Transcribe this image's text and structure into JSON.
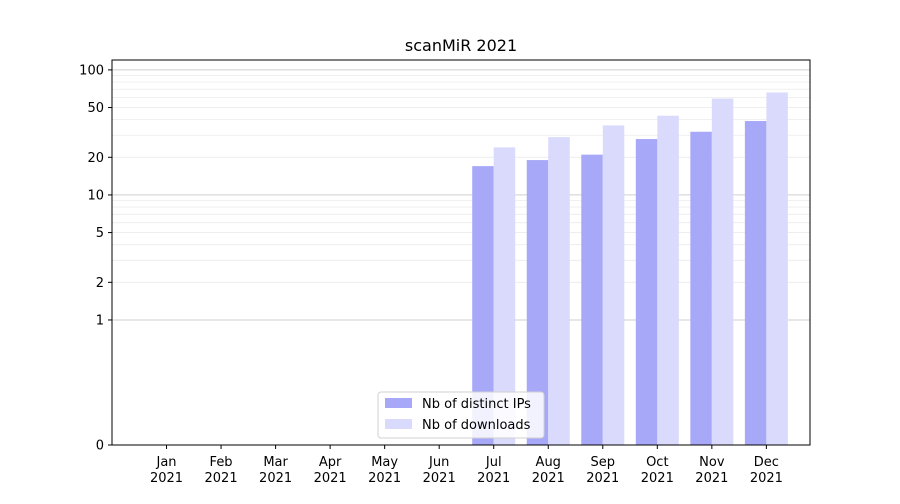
{
  "chart_data": {
    "type": "bar",
    "title": "scanMiR 2021",
    "categories": [
      [
        "Jan",
        "2021"
      ],
      [
        "Feb",
        "2021"
      ],
      [
        "Mar",
        "2021"
      ],
      [
        "Apr",
        "2021"
      ],
      [
        "May",
        "2021"
      ],
      [
        "Jun",
        "2021"
      ],
      [
        "Jul",
        "2021"
      ],
      [
        "Aug",
        "2021"
      ],
      [
        "Sep",
        "2021"
      ],
      [
        "Oct",
        "2021"
      ],
      [
        "Nov",
        "2021"
      ],
      [
        "Dec",
        "2021"
      ]
    ],
    "series": [
      {
        "name": "Nb of distinct IPs",
        "color": "#a8a8f8",
        "values": [
          0,
          0,
          0,
          0,
          0,
          0,
          17,
          19,
          21,
          28,
          32,
          39
        ]
      },
      {
        "name": "Nb of downloads",
        "color": "#dadafd",
        "values": [
          0,
          0,
          0,
          0,
          0,
          0,
          24,
          29,
          36,
          43,
          59,
          66
        ]
      }
    ],
    "y_scale": "symlog",
    "ylim": [
      0,
      120
    ],
    "y_ticks": [
      0,
      1,
      2,
      5,
      10,
      20,
      50,
      100
    ],
    "grid": true,
    "legend_position": "lower center"
  }
}
